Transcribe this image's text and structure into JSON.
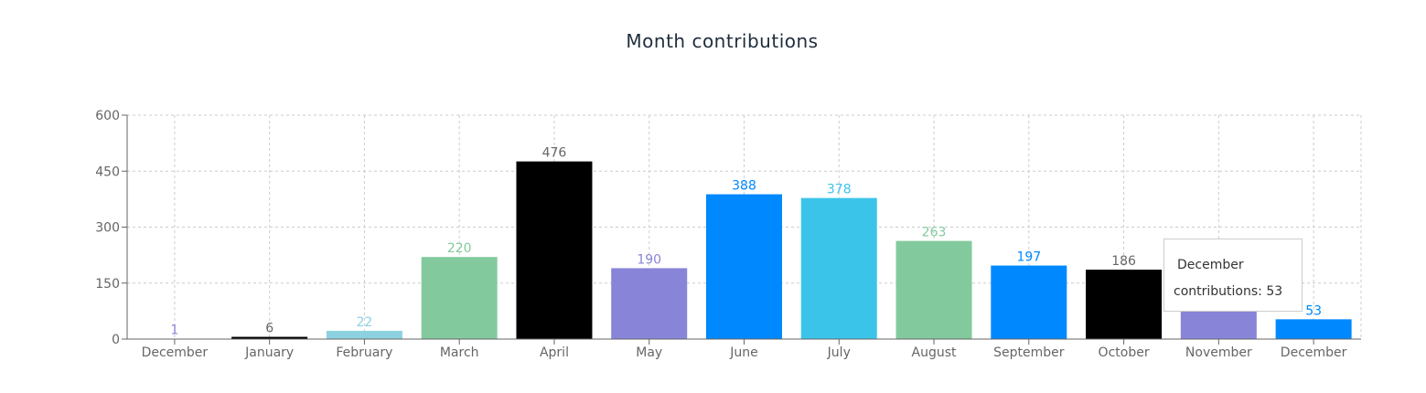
{
  "chart_data": {
    "type": "bar",
    "title": "Month contributions",
    "categories": [
      "December",
      "January",
      "February",
      "March",
      "April",
      "May",
      "June",
      "July",
      "August",
      "September",
      "October",
      "November",
      "December"
    ],
    "values": [
      1,
      6,
      22,
      220,
      476,
      190,
      388,
      378,
      263,
      197,
      186,
      120,
      53
    ],
    "colors": [
      "#8884d8",
      "#000000",
      "#8dd1e1",
      "#82ca9d",
      "#000000",
      "#8884d8",
      "#0088fe",
      "#3bc4ea",
      "#82ca9d",
      "#0088fe",
      "#000000",
      "#8884d8",
      "#0088fe"
    ],
    "label_colors": [
      "#8884d8",
      "#666666",
      "#8dd1e1",
      "#82ca9d",
      "#666666",
      "#8884d8",
      "#0088fe",
      "#3bc4ea",
      "#82ca9d",
      "#0088fe",
      "#666666",
      "#8884d8",
      "#0088fe"
    ],
    "yticks": [
      0,
      150,
      300,
      450,
      600
    ],
    "ylim": [
      0,
      600
    ],
    "xlabel": "",
    "ylabel": "",
    "grid": true,
    "tooltip": {
      "label": "December",
      "series_name": "contributions",
      "separator": ": ",
      "value": 53
    }
  }
}
